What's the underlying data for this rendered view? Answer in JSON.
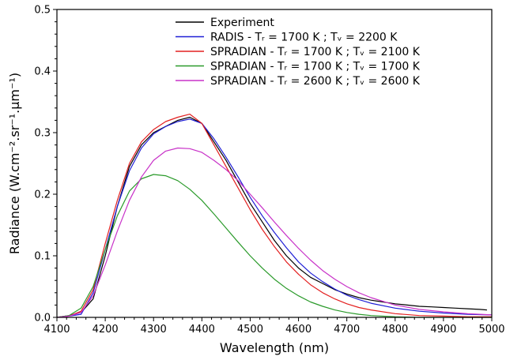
{
  "chart_data": {
    "type": "line",
    "title": "",
    "xlabel": "Wavelength (nm)",
    "ylabel": "Radiance (W.cm⁻².sr⁻¹.µm⁻¹)",
    "xlim": [
      4100,
      5000
    ],
    "ylim": [
      0,
      0.5
    ],
    "xticks": [
      4100,
      4200,
      4300,
      4400,
      4500,
      4600,
      4700,
      4800,
      4900,
      5000
    ],
    "yticks": [
      0.0,
      0.1,
      0.2,
      0.3,
      0.4,
      0.5
    ],
    "ytick_labels": [
      "0.0",
      "0.1",
      "0.2",
      "0.3",
      "0.4",
      "0.5"
    ],
    "grid": false,
    "legend_position": "top-right",
    "series": [
      {
        "name": "Experiment",
        "color": "#000000",
        "x": [
          4100,
          4125,
          4150,
          4175,
          4200,
          4225,
          4250,
          4275,
          4300,
          4325,
          4350,
          4375,
          4400,
          4425,
          4450,
          4475,
          4500,
          4525,
          4550,
          4575,
          4600,
          4625,
          4650,
          4675,
          4700,
          4725,
          4750,
          4775,
          4800,
          4825,
          4850,
          4875,
          4900,
          4925,
          4950,
          4975,
          4990
        ],
        "y": [
          0.0,
          0.003,
          0.008,
          0.03,
          0.1,
          0.18,
          0.245,
          0.28,
          0.3,
          0.31,
          0.32,
          0.325,
          0.315,
          0.285,
          0.255,
          0.22,
          0.185,
          0.155,
          0.125,
          0.1,
          0.08,
          0.065,
          0.055,
          0.045,
          0.038,
          0.032,
          0.028,
          0.025,
          0.022,
          0.02,
          0.018,
          0.017,
          0.016,
          0.015,
          0.014,
          0.013,
          0.012
        ]
      },
      {
        "name": "RADIS - Tᵣ = 1700 K ; Tᵥ = 2200 K",
        "color": "#1f1fd6",
        "x": [
          4100,
          4125,
          4150,
          4175,
          4200,
          4225,
          4250,
          4275,
          4300,
          4325,
          4350,
          4375,
          4400,
          4425,
          4450,
          4475,
          4500,
          4525,
          4550,
          4575,
          4600,
          4625,
          4650,
          4675,
          4700,
          4725,
          4750,
          4800,
          4850,
          4900,
          4950,
          5000
        ],
        "y": [
          0.0,
          0.002,
          0.005,
          0.04,
          0.11,
          0.18,
          0.238,
          0.275,
          0.298,
          0.31,
          0.318,
          0.322,
          0.315,
          0.29,
          0.26,
          0.228,
          0.195,
          0.165,
          0.138,
          0.113,
          0.09,
          0.072,
          0.058,
          0.046,
          0.036,
          0.029,
          0.023,
          0.015,
          0.01,
          0.007,
          0.005,
          0.004
        ]
      },
      {
        "name": "SPRADIAN - Tᵣ = 1700 K ; Tᵥ = 2100 K",
        "color": "#e32020",
        "x": [
          4100,
          4125,
          4150,
          4175,
          4200,
          4225,
          4250,
          4275,
          4300,
          4325,
          4350,
          4375,
          4400,
          4425,
          4450,
          4475,
          4500,
          4525,
          4550,
          4575,
          4600,
          4625,
          4650,
          4675,
          4700,
          4725,
          4750,
          4800,
          4850,
          4900,
          4950,
          5000
        ],
        "y": [
          0.0,
          0.002,
          0.01,
          0.045,
          0.12,
          0.19,
          0.25,
          0.285,
          0.305,
          0.318,
          0.325,
          0.33,
          0.315,
          0.28,
          0.245,
          0.21,
          0.175,
          0.143,
          0.115,
          0.09,
          0.07,
          0.053,
          0.04,
          0.03,
          0.022,
          0.016,
          0.012,
          0.006,
          0.003,
          0.002,
          0.001,
          0.001
        ]
      },
      {
        "name": "SPRADIAN - Tᵣ = 1700 K ; Tᵥ = 1700 K",
        "color": "#2a9a2a",
        "x": [
          4100,
          4125,
          4150,
          4175,
          4200,
          4225,
          4250,
          4275,
          4300,
          4325,
          4350,
          4375,
          4400,
          4425,
          4450,
          4475,
          4500,
          4525,
          4550,
          4575,
          4600,
          4625,
          4650,
          4675,
          4700,
          4725,
          4750,
          4800,
          4850,
          4900,
          4950,
          5000
        ],
        "y": [
          0.0,
          0.003,
          0.015,
          0.05,
          0.11,
          0.165,
          0.205,
          0.225,
          0.232,
          0.23,
          0.222,
          0.208,
          0.19,
          0.168,
          0.145,
          0.122,
          0.1,
          0.08,
          0.062,
          0.047,
          0.035,
          0.025,
          0.018,
          0.012,
          0.008,
          0.005,
          0.003,
          0.001,
          0.0,
          0.0,
          0.0,
          0.0
        ]
      },
      {
        "name": "SPRADIAN - Tᵣ = 2600 K ; Tᵥ = 2600 K",
        "color": "#c832c8",
        "x": [
          4100,
          4125,
          4150,
          4175,
          4200,
          4225,
          4250,
          4275,
          4300,
          4325,
          4350,
          4375,
          4400,
          4425,
          4450,
          4475,
          4500,
          4525,
          4550,
          4575,
          4600,
          4625,
          4650,
          4675,
          4700,
          4725,
          4750,
          4800,
          4850,
          4900,
          4950,
          5000
        ],
        "y": [
          0.0,
          0.002,
          0.008,
          0.035,
          0.085,
          0.14,
          0.19,
          0.228,
          0.255,
          0.27,
          0.275,
          0.274,
          0.268,
          0.255,
          0.24,
          0.222,
          0.2,
          0.178,
          0.155,
          0.133,
          0.112,
          0.093,
          0.076,
          0.062,
          0.05,
          0.04,
          0.032,
          0.02,
          0.013,
          0.009,
          0.006,
          0.004
        ]
      }
    ]
  }
}
